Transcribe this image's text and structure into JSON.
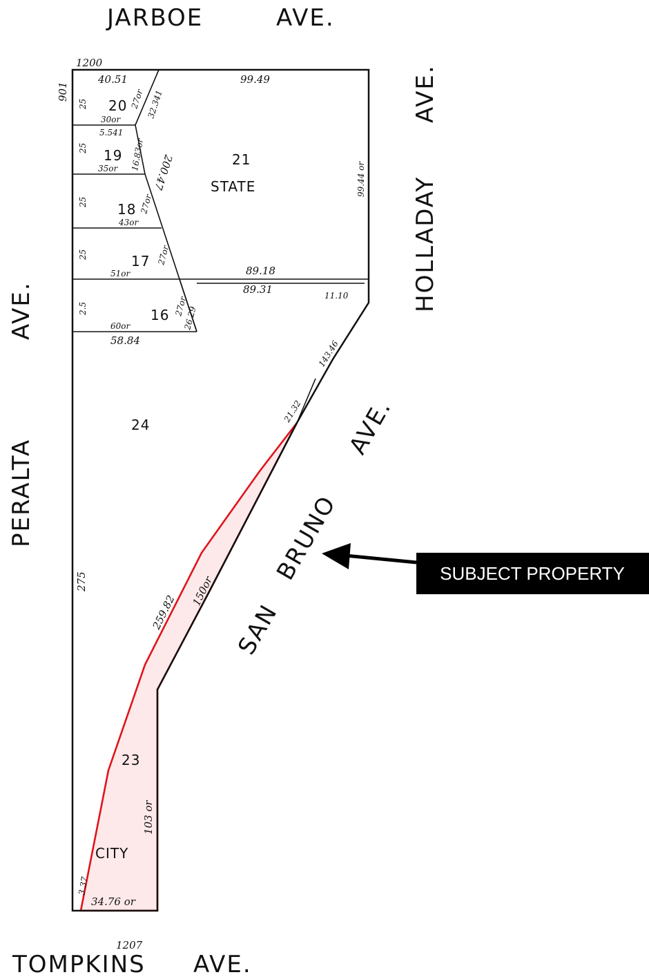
{
  "streets": {
    "north": [
      "JARBOE",
      "AVE."
    ],
    "east": [
      "HOLLADAY",
      "AVE."
    ],
    "west": [
      "PERALTA",
      "AVE."
    ],
    "south": [
      "TOMPKINS",
      "AVE."
    ],
    "diagonal": [
      "SAN",
      "BRUNO",
      "AVE."
    ]
  },
  "block_numbers": {
    "top": "1200",
    "left": "901",
    "bottom": "1207"
  },
  "lots": [
    {
      "number": "20"
    },
    {
      "number": "19"
    },
    {
      "number": "18"
    },
    {
      "number": "17"
    },
    {
      "number": "16"
    },
    {
      "number": "21",
      "label": "STATE"
    },
    {
      "number": "24"
    },
    {
      "number": "23",
      "label": "CITY"
    }
  ],
  "dimensions": {
    "top_left": "40.51",
    "top_right": "99.49",
    "lot20_bottom": "30or",
    "lot20_diag": "27or",
    "lot20_diag2": "32.341",
    "lot19_top": "5.541",
    "lot19_diag": "16.83or",
    "lot19_bottom": "35or",
    "lot18_diag": "27or",
    "lot18_bottom": "43or",
    "long_diag": "200.47",
    "lot17_diag": "27or",
    "lot17_bottom": "51or",
    "lot16_diag": "27or",
    "lot16_diag2": "26.29",
    "lot16_bottom": "60or",
    "lot16_bottom2": "58.84",
    "east_side": "99.44 or",
    "mid_top": "89.18",
    "mid_bottom": "89.31",
    "short_east": "11.10",
    "san_bruno_upper": "143.46",
    "san_bruno_point": "21.32",
    "subject_long": "259.82",
    "subject_inner": "150or",
    "west_side": "275",
    "west_25": [
      "25",
      "25",
      "25",
      "25",
      "2.5"
    ],
    "city_side": "103 or",
    "city_bottom": "34.76 or",
    "city_sw": "3.37"
  },
  "callout": {
    "label": "SUBJECT PROPERTY"
  },
  "colors": {
    "subject_outline": "#e0131a",
    "subject_fill": "#fde9ea",
    "callout_bg": "#000000"
  }
}
